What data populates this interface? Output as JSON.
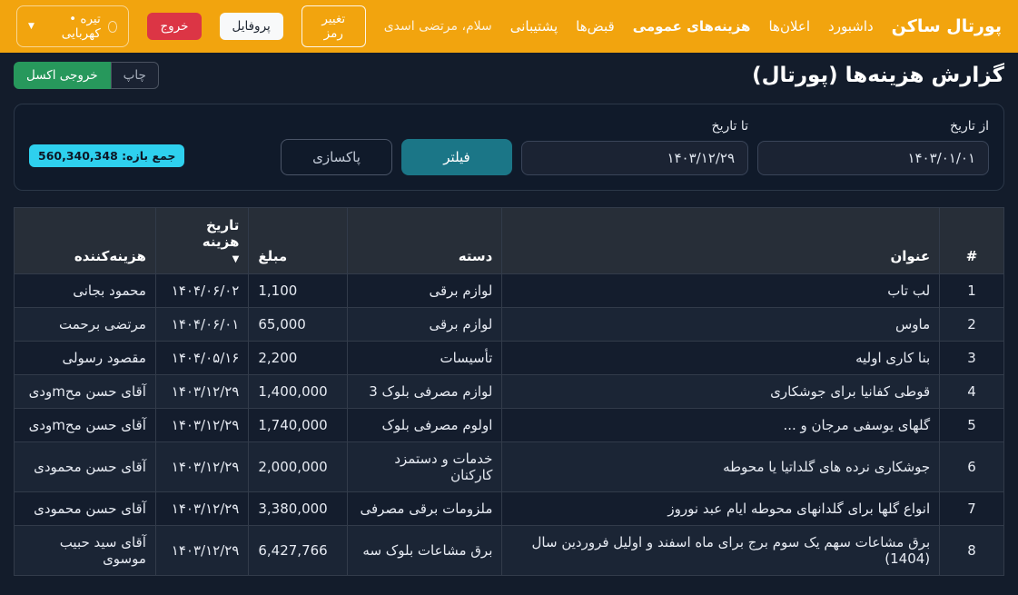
{
  "theme": {
    "navbar_bg": "#f2a40e",
    "page_bg": "#131c2b",
    "accent_teal": "#1b7687",
    "badge_cyan": "#2ed0ee",
    "excel_green": "#27985c",
    "logout_red": "#dc3545"
  },
  "navbar": {
    "brand": "پورتال ساکن",
    "items": [
      {
        "label": "داشبورد",
        "active": false
      },
      {
        "label": "اعلان‌ها",
        "active": false
      },
      {
        "label": "هزینه‌های عمومی",
        "active": true
      },
      {
        "label": "قبض‌ها",
        "active": false
      },
      {
        "label": "پشتیبانی",
        "active": false
      }
    ],
    "greeting": "سلام، مرتضی اسدی",
    "change_password_label": "تغییر رمز",
    "profile_label": "پروفایل",
    "logout_label": "خروج",
    "theme_selector_label": "تیره • کهربایی"
  },
  "page": {
    "title": "گزارش هزینه‌ها (پورتال)",
    "print_label": "چاپ",
    "excel_label": "خروجی اکسل"
  },
  "filter": {
    "from_label": "از تاریخ",
    "from_value": "۱۴۰۳/۰۱/۰۱",
    "to_label": "تا تاریخ",
    "to_value": "۱۴۰۳/۱۲/۲۹",
    "filter_label": "فیلتر",
    "clear_label": "پاکسازی",
    "total_badge": "جمع بازه: 560,340,348"
  },
  "table": {
    "headers": {
      "num": "#",
      "title": "عنوان",
      "category": "دسته",
      "amount": "مبلغ",
      "date": "تاریخ هزینه",
      "spender": "هزینه‌کننده"
    },
    "sort_icon": "▼",
    "rows": [
      {
        "num": "1",
        "title": "لب تاب",
        "category": "لوازم برقی",
        "amount": "1,100",
        "date": "۱۴۰۴/۰۶/۰۲",
        "spender": "محمود بجانی"
      },
      {
        "num": "2",
        "title": "ماوس",
        "category": "لوازم برقی",
        "amount": "65,000",
        "date": "۱۴۰۴/۰۶/۰۱",
        "spender": "مرتضی برحمت"
      },
      {
        "num": "3",
        "title": "بنا کاری اولیه",
        "category": "تأسیسات",
        "amount": "2,200",
        "date": "۱۴۰۴/۰۵/۱۶",
        "spender": "مقصود رسولی"
      },
      {
        "num": "4",
        "title": "قوطی کفانیا برای جوشکاری",
        "category": "لوازم مصرفی بلوک 3",
        "amount": "1,400,000",
        "date": "۱۴۰۳/۱۲/۲۹",
        "spender": "آقای حسن محmودی"
      },
      {
        "num": "5",
        "title": "گلهای یوسفی مرجان و ...",
        "category": "اولوم مصرفی بلوک",
        "amount": "1,740,000",
        "date": "۱۴۰۳/۱۲/۲۹",
        "spender": "آقای حسن محmودی"
      },
      {
        "num": "6",
        "title": "جوشکاری نرده های گلداتیا یا محوطه",
        "category": "خدمات و دستمزد کارکنان",
        "amount": "2,000,000",
        "date": "۱۴۰۳/۱۲/۲۹",
        "spender": "آقای حسن محمودی"
      },
      {
        "num": "7",
        "title": "انواع گلها برای گلدانهای محوطه ایام عبد نوروز",
        "category": "ملزومات برقی مصرفی",
        "amount": "3,380,000",
        "date": "۱۴۰۳/۱۲/۲۹",
        "spender": "آقای حسن محمودی"
      },
      {
        "num": "8",
        "title": "برق مشاعات سهم یک سوم برج برای ماه اسفند و اولیل فروردین سال (1404)",
        "category": "برق مشاعات بلوک سه",
        "amount": "6,427,766",
        "date": "۱۴۰۳/۱۲/۲۹",
        "spender": "آقای سید حبیب موسوی"
      }
    ]
  }
}
